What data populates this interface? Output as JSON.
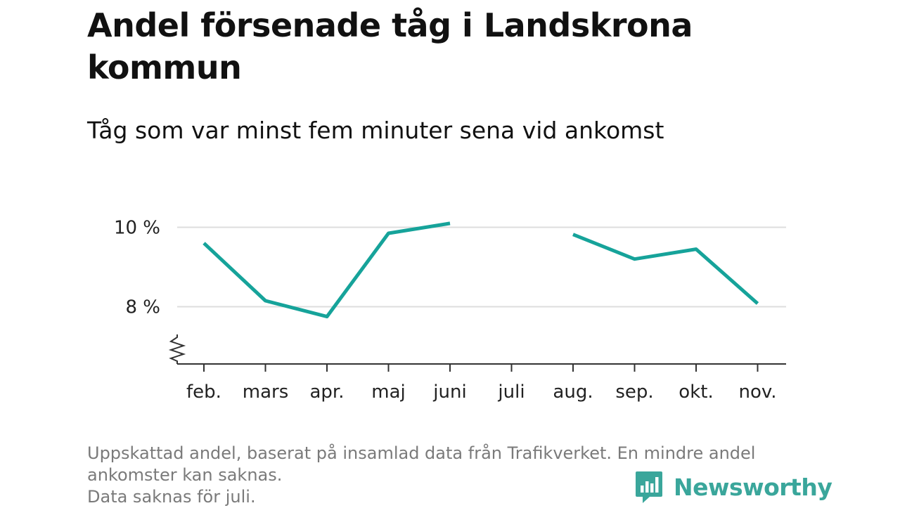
{
  "title": "Andel försenade tåg i Landskrona kommun",
  "subtitle": "Tåg som var minst fem minuter sena vid ankomst",
  "footnote": {
    "line1": "Uppskattad andel, baserat på insamlad data från Trafikverket. En mindre andel",
    "line2": "ankomster kan saknas.",
    "line3": "Data saknas för juli."
  },
  "brand": {
    "name": "Newsworthy",
    "icon": "newsworthy-logo-icon",
    "color": "#3aa69b"
  },
  "chart_data": {
    "type": "line",
    "categories": [
      "feb.",
      "mars",
      "apr.",
      "maj",
      "juni",
      "juli",
      "aug.",
      "sep.",
      "okt.",
      "nov."
    ],
    "series": [
      {
        "values": [
          9.6,
          8.15,
          7.75,
          9.85,
          10.1,
          null,
          9.82,
          9.2,
          9.45,
          8.08
        ],
        "color": "#16a39a"
      }
    ],
    "yticks": [
      {
        "value": 8,
        "label": "8 %"
      },
      {
        "value": 10,
        "label": "10 %"
      }
    ],
    "ylim": [
      6.6,
      10.6
    ],
    "y_axis_break": true,
    "grid": true,
    "missing": [
      "juli"
    ]
  }
}
